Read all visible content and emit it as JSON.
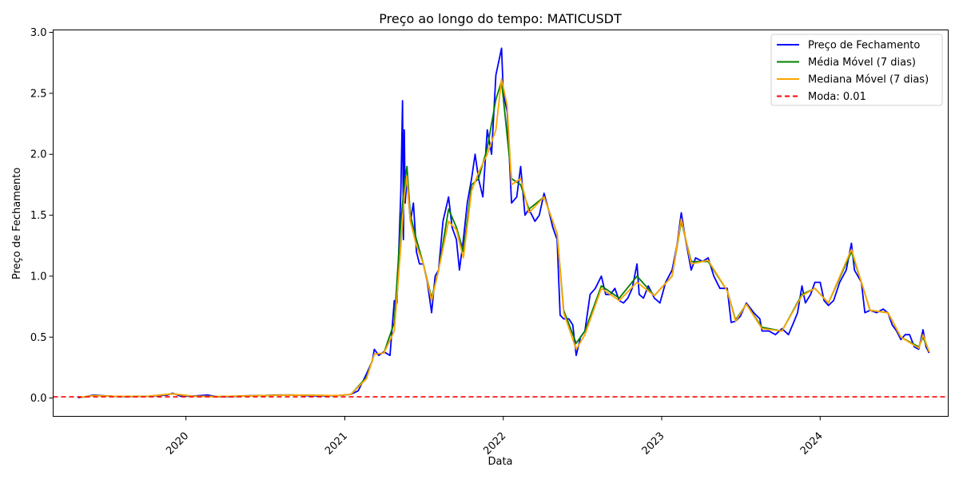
{
  "chart_data": {
    "type": "line",
    "title": "Preço ao longo do tempo: MATICUSDT",
    "xlabel": "Data",
    "ylabel": "Preço de Fechamento",
    "x_ticks": [
      "2020",
      "2021",
      "2022",
      "2023",
      "2024"
    ],
    "x_range": [
      "2019-03-01",
      "2024-10-22"
    ],
    "y_ticks": [
      "0.0",
      "0.5",
      "1.0",
      "1.5",
      "2.0",
      "2.5",
      "3.0"
    ],
    "ylim": [
      -0.15,
      3.02
    ],
    "grid": false,
    "legend_position": "top-right",
    "series": [
      {
        "name": "Preço de Fechamento",
        "color": "#0000ff",
        "style": "solid",
        "points": [
          [
            "2019-04-27",
            0.004
          ],
          [
            "2019-05-15",
            0.01
          ],
          [
            "2019-06-01",
            0.025
          ],
          [
            "2019-06-20",
            0.02
          ],
          [
            "2019-07-15",
            0.015
          ],
          [
            "2019-08-15",
            0.012
          ],
          [
            "2019-10-01",
            0.013
          ],
          [
            "2019-11-20",
            0.025
          ],
          [
            "2019-12-01",
            0.04
          ],
          [
            "2019-12-20",
            0.015
          ],
          [
            "2020-01-15",
            0.016
          ],
          [
            "2020-02-20",
            0.025
          ],
          [
            "2020-03-13",
            0.01
          ],
          [
            "2020-04-15",
            0.012
          ],
          [
            "2020-05-15",
            0.018
          ],
          [
            "2020-06-20",
            0.02
          ],
          [
            "2020-08-01",
            0.025
          ],
          [
            "2020-09-01",
            0.025
          ],
          [
            "2020-10-15",
            0.018
          ],
          [
            "2020-11-15",
            0.018
          ],
          [
            "2020-12-15",
            0.02
          ],
          [
            "2021-01-15",
            0.03
          ],
          [
            "2021-02-01",
            0.06
          ],
          [
            "2021-02-20",
            0.2
          ],
          [
            "2021-03-05",
            0.3
          ],
          [
            "2021-03-10",
            0.4
          ],
          [
            "2021-03-20",
            0.35
          ],
          [
            "2021-04-01",
            0.38
          ],
          [
            "2021-04-15",
            0.35
          ],
          [
            "2021-04-25",
            0.8
          ],
          [
            "2021-05-01",
            0.78
          ],
          [
            "2021-05-10",
            1.7
          ],
          [
            "2021-05-14",
            2.44
          ],
          [
            "2021-05-16",
            1.3
          ],
          [
            "2021-05-18",
            2.2
          ],
          [
            "2021-05-20",
            1.6
          ],
          [
            "2021-05-24",
            1.8
          ],
          [
            "2021-06-01",
            1.45
          ],
          [
            "2021-06-08",
            1.6
          ],
          [
            "2021-06-15",
            1.2
          ],
          [
            "2021-06-22",
            1.1
          ],
          [
            "2021-07-01",
            1.1
          ],
          [
            "2021-07-10",
            0.95
          ],
          [
            "2021-07-20",
            0.7
          ],
          [
            "2021-07-28",
            1.0
          ],
          [
            "2021-08-05",
            1.05
          ],
          [
            "2021-08-15",
            1.45
          ],
          [
            "2021-08-28",
            1.65
          ],
          [
            "2021-09-05",
            1.4
          ],
          [
            "2021-09-15",
            1.3
          ],
          [
            "2021-09-22",
            1.05
          ],
          [
            "2021-10-01",
            1.3
          ],
          [
            "2021-10-10",
            1.6
          ],
          [
            "2021-10-20",
            1.8
          ],
          [
            "2021-10-28",
            2.0
          ],
          [
            "2021-11-05",
            1.8
          ],
          [
            "2021-11-15",
            1.65
          ],
          [
            "2021-11-25",
            2.2
          ],
          [
            "2021-12-05",
            2.0
          ],
          [
            "2021-12-15",
            2.65
          ],
          [
            "2021-12-28",
            2.87
          ],
          [
            "2022-01-01",
            2.5
          ],
          [
            "2022-01-10",
            2.35
          ],
          [
            "2022-01-20",
            1.6
          ],
          [
            "2022-02-01",
            1.65
          ],
          [
            "2022-02-10",
            1.9
          ],
          [
            "2022-02-20",
            1.5
          ],
          [
            "2022-03-01",
            1.55
          ],
          [
            "2022-03-15",
            1.45
          ],
          [
            "2022-03-25",
            1.5
          ],
          [
            "2022-04-05",
            1.68
          ],
          [
            "2022-04-15",
            1.55
          ],
          [
            "2022-04-25",
            1.4
          ],
          [
            "2022-05-05",
            1.3
          ],
          [
            "2022-05-12",
            0.68
          ],
          [
            "2022-05-20",
            0.65
          ],
          [
            "2022-06-01",
            0.65
          ],
          [
            "2022-06-10",
            0.6
          ],
          [
            "2022-06-18",
            0.35
          ],
          [
            "2022-06-28",
            0.5
          ],
          [
            "2022-07-08",
            0.55
          ],
          [
            "2022-07-20",
            0.85
          ],
          [
            "2022-08-01",
            0.9
          ],
          [
            "2022-08-15",
            1.0
          ],
          [
            "2022-08-25",
            0.85
          ],
          [
            "2022-09-05",
            0.85
          ],
          [
            "2022-09-15",
            0.9
          ],
          [
            "2022-09-25",
            0.8
          ],
          [
            "2022-10-05",
            0.78
          ],
          [
            "2022-10-15",
            0.82
          ],
          [
            "2022-10-25",
            0.9
          ],
          [
            "2022-11-05",
            1.1
          ],
          [
            "2022-11-10",
            0.85
          ],
          [
            "2022-11-20",
            0.82
          ],
          [
            "2022-12-01",
            0.92
          ],
          [
            "2022-12-15",
            0.82
          ],
          [
            "2022-12-28",
            0.78
          ],
          [
            "2023-01-10",
            0.95
          ],
          [
            "2023-01-25",
            1.05
          ],
          [
            "2023-02-05",
            1.25
          ],
          [
            "2023-02-15",
            1.52
          ],
          [
            "2023-02-25",
            1.3
          ],
          [
            "2023-03-10",
            1.05
          ],
          [
            "2023-03-20",
            1.15
          ],
          [
            "2023-04-05",
            1.12
          ],
          [
            "2023-04-18",
            1.15
          ],
          [
            "2023-05-01",
            1.0
          ],
          [
            "2023-05-15",
            0.9
          ],
          [
            "2023-06-01",
            0.9
          ],
          [
            "2023-06-10",
            0.62
          ],
          [
            "2023-06-20",
            0.63
          ],
          [
            "2023-07-01",
            0.67
          ],
          [
            "2023-07-15",
            0.78
          ],
          [
            "2023-08-01",
            0.7
          ],
          [
            "2023-08-15",
            0.65
          ],
          [
            "2023-08-20",
            0.55
          ],
          [
            "2023-09-05",
            0.55
          ],
          [
            "2023-09-20",
            0.52
          ],
          [
            "2023-10-05",
            0.57
          ],
          [
            "2023-10-20",
            0.52
          ],
          [
            "2023-11-01",
            0.62
          ],
          [
            "2023-11-10",
            0.7
          ],
          [
            "2023-11-20",
            0.92
          ],
          [
            "2023-11-28",
            0.78
          ],
          [
            "2023-12-10",
            0.85
          ],
          [
            "2023-12-20",
            0.95
          ],
          [
            "2024-01-01",
            0.95
          ],
          [
            "2024-01-10",
            0.8
          ],
          [
            "2024-01-20",
            0.76
          ],
          [
            "2024-02-01",
            0.8
          ],
          [
            "2024-02-15",
            0.95
          ],
          [
            "2024-03-01",
            1.05
          ],
          [
            "2024-03-13",
            1.27
          ],
          [
            "2024-03-20",
            1.05
          ],
          [
            "2024-04-05",
            0.95
          ],
          [
            "2024-04-13",
            0.7
          ],
          [
            "2024-04-25",
            0.72
          ],
          [
            "2024-05-10",
            0.7
          ],
          [
            "2024-05-25",
            0.73
          ],
          [
            "2024-06-05",
            0.7
          ],
          [
            "2024-06-15",
            0.6
          ],
          [
            "2024-06-25",
            0.55
          ],
          [
            "2024-07-05",
            0.48
          ],
          [
            "2024-07-15",
            0.52
          ],
          [
            "2024-07-25",
            0.52
          ],
          [
            "2024-08-05",
            0.42
          ],
          [
            "2024-08-15",
            0.4
          ],
          [
            "2024-08-25",
            0.56
          ],
          [
            "2024-09-01",
            0.42
          ],
          [
            "2024-09-08",
            0.37
          ]
        ]
      },
      {
        "name": "Média Móvel (7 dias)",
        "color": "#008000",
        "style": "solid",
        "points": [
          [
            "2019-05-03",
            0.005
          ],
          [
            "2019-06-01",
            0.02
          ],
          [
            "2019-07-15",
            0.015
          ],
          [
            "2019-10-01",
            0.013
          ],
          [
            "2019-12-01",
            0.035
          ],
          [
            "2020-01-15",
            0.016
          ],
          [
            "2020-03-13",
            0.012
          ],
          [
            "2020-06-20",
            0.02
          ],
          [
            "2020-09-01",
            0.025
          ],
          [
            "2020-12-15",
            0.02
          ],
          [
            "2021-01-15",
            0.03
          ],
          [
            "2021-02-20",
            0.17
          ],
          [
            "2021-03-10",
            0.36
          ],
          [
            "2021-04-01",
            0.37
          ],
          [
            "2021-04-25",
            0.62
          ],
          [
            "2021-05-10",
            1.45
          ],
          [
            "2021-05-18",
            1.75
          ],
          [
            "2021-05-24",
            1.9
          ],
          [
            "2021-06-01",
            1.5
          ],
          [
            "2021-06-15",
            1.3
          ],
          [
            "2021-07-01",
            1.1
          ],
          [
            "2021-07-20",
            0.82
          ],
          [
            "2021-08-05",
            1.05
          ],
          [
            "2021-08-28",
            1.55
          ],
          [
            "2021-09-15",
            1.4
          ],
          [
            "2021-10-01",
            1.2
          ],
          [
            "2021-10-20",
            1.75
          ],
          [
            "2021-11-05",
            1.8
          ],
          [
            "2021-11-25",
            2.05
          ],
          [
            "2021-12-15",
            2.45
          ],
          [
            "2021-12-28",
            2.6
          ],
          [
            "2022-01-20",
            1.8
          ],
          [
            "2022-02-10",
            1.75
          ],
          [
            "2022-03-01",
            1.55
          ],
          [
            "2022-04-05",
            1.65
          ],
          [
            "2022-05-05",
            1.35
          ],
          [
            "2022-05-20",
            0.72
          ],
          [
            "2022-06-18",
            0.45
          ],
          [
            "2022-07-08",
            0.55
          ],
          [
            "2022-08-15",
            0.92
          ],
          [
            "2022-09-25",
            0.82
          ],
          [
            "2022-11-05",
            1.0
          ],
          [
            "2022-12-15",
            0.84
          ],
          [
            "2023-01-25",
            1.0
          ],
          [
            "2023-02-15",
            1.45
          ],
          [
            "2023-03-10",
            1.12
          ],
          [
            "2023-04-18",
            1.12
          ],
          [
            "2023-06-01",
            0.88
          ],
          [
            "2023-06-20",
            0.64
          ],
          [
            "2023-07-15",
            0.77
          ],
          [
            "2023-08-20",
            0.58
          ],
          [
            "2023-10-05",
            0.55
          ],
          [
            "2023-11-20",
            0.85
          ],
          [
            "2023-12-20",
            0.9
          ],
          [
            "2024-01-20",
            0.78
          ],
          [
            "2024-03-13",
            1.2
          ],
          [
            "2024-04-05",
            0.95
          ],
          [
            "2024-04-25",
            0.72
          ],
          [
            "2024-06-05",
            0.7
          ],
          [
            "2024-07-05",
            0.5
          ],
          [
            "2024-08-15",
            0.42
          ],
          [
            "2024-08-25",
            0.5
          ],
          [
            "2024-09-08",
            0.38
          ]
        ]
      },
      {
        "name": "Mediana Móvel (7 dias)",
        "color": "#ffa500",
        "style": "solid",
        "points": [
          [
            "2019-05-03",
            0.005
          ],
          [
            "2019-06-01",
            0.02
          ],
          [
            "2019-07-15",
            0.015
          ],
          [
            "2019-10-01",
            0.013
          ],
          [
            "2019-12-01",
            0.035
          ],
          [
            "2020-01-15",
            0.016
          ],
          [
            "2020-03-13",
            0.012
          ],
          [
            "2020-06-20",
            0.02
          ],
          [
            "2020-09-01",
            0.025
          ],
          [
            "2020-12-15",
            0.02
          ],
          [
            "2021-01-15",
            0.03
          ],
          [
            "2021-02-20",
            0.16
          ],
          [
            "2021-03-10",
            0.36
          ],
          [
            "2021-04-01",
            0.37
          ],
          [
            "2021-04-25",
            0.55
          ],
          [
            "2021-05-10",
            1.25
          ],
          [
            "2021-05-18",
            1.65
          ],
          [
            "2021-05-24",
            1.82
          ],
          [
            "2021-06-01",
            1.45
          ],
          [
            "2021-06-15",
            1.25
          ],
          [
            "2021-07-01",
            1.1
          ],
          [
            "2021-07-20",
            0.8
          ],
          [
            "2021-08-05",
            1.05
          ],
          [
            "2021-08-28",
            1.45
          ],
          [
            "2021-09-15",
            1.38
          ],
          [
            "2021-10-01",
            1.15
          ],
          [
            "2021-10-20",
            1.7
          ],
          [
            "2021-11-05",
            1.85
          ],
          [
            "2021-11-25",
            2.0
          ],
          [
            "2021-12-15",
            2.2
          ],
          [
            "2021-12-28",
            2.62
          ],
          [
            "2022-01-10",
            2.4
          ],
          [
            "2022-01-20",
            1.75
          ],
          [
            "2022-02-10",
            1.8
          ],
          [
            "2022-03-01",
            1.52
          ],
          [
            "2022-04-05",
            1.65
          ],
          [
            "2022-05-05",
            1.35
          ],
          [
            "2022-05-20",
            0.7
          ],
          [
            "2022-06-18",
            0.4
          ],
          [
            "2022-07-08",
            0.52
          ],
          [
            "2022-08-15",
            0.9
          ],
          [
            "2022-09-25",
            0.8
          ],
          [
            "2022-11-05",
            0.95
          ],
          [
            "2022-12-15",
            0.84
          ],
          [
            "2023-01-25",
            1.0
          ],
          [
            "2023-02-15",
            1.47
          ],
          [
            "2023-03-10",
            1.1
          ],
          [
            "2023-04-18",
            1.13
          ],
          [
            "2023-06-01",
            0.88
          ],
          [
            "2023-06-20",
            0.63
          ],
          [
            "2023-07-15",
            0.77
          ],
          [
            "2023-08-20",
            0.57
          ],
          [
            "2023-10-05",
            0.55
          ],
          [
            "2023-11-20",
            0.84
          ],
          [
            "2023-12-20",
            0.9
          ],
          [
            "2024-01-20",
            0.78
          ],
          [
            "2024-03-13",
            1.22
          ],
          [
            "2024-04-05",
            0.95
          ],
          [
            "2024-04-25",
            0.72
          ],
          [
            "2024-06-05",
            0.7
          ],
          [
            "2024-07-05",
            0.5
          ],
          [
            "2024-08-15",
            0.41
          ],
          [
            "2024-08-25",
            0.52
          ],
          [
            "2024-09-08",
            0.38
          ]
        ]
      },
      {
        "name": "Moda: 0.01",
        "color": "#ff0000",
        "style": "dashed",
        "y": 0.01
      }
    ]
  }
}
